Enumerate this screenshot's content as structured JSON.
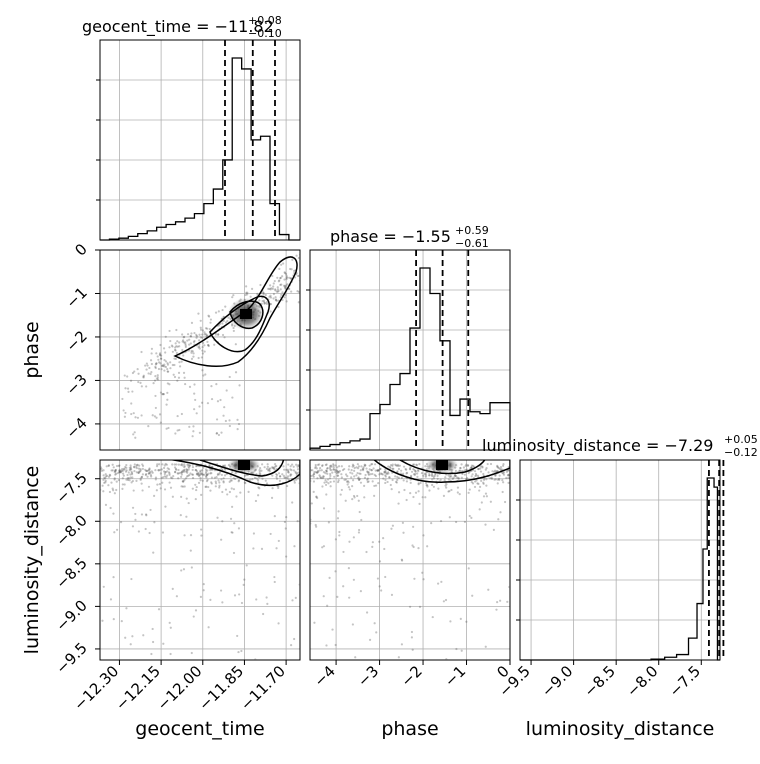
{
  "chart_data": {
    "type": "corner",
    "parameters": [
      {
        "name": "geocent_time",
        "range": [
          -12.37,
          -11.65
        ],
        "ticks": [
          -12.3,
          -12.15,
          -12.0,
          -11.85,
          -11.7
        ]
      },
      {
        "name": "phase",
        "range": [
          -4.6,
          0
        ],
        "ticks": [
          -4,
          -3,
          -2,
          -1,
          0
        ]
      },
      {
        "name": "luminosity_distance",
        "range": [
          -9.63,
          -7.28
        ],
        "ticks": [
          -9.5,
          -9.0,
          -8.5,
          -8.0,
          -7.5
        ]
      }
    ],
    "tick_labels": {
      "geocent_time": [
        "−12.30",
        "−12.15",
        "−12.00",
        "−11.85",
        "−11.70"
      ],
      "phase": [
        "−4",
        "−3",
        "−2",
        "−1",
        "0"
      ],
      "luminosity_distance": [
        "−9.5",
        "−9.0",
        "−8.5",
        "−8.0",
        "−7.5"
      ]
    },
    "titles": [
      {
        "label": "geocent_time = −11.82",
        "sup": "+0.08",
        "sub": "−0.10"
      },
      {
        "label": "phase = −1.55",
        "sup": "+0.59",
        "sub": "−0.61"
      },
      {
        "label": "luminosity_distance = −7.29",
        "sup": "+0.05",
        "sub": "−0.12"
      }
    ],
    "axis_labels": {
      "x": [
        "geocent_time",
        "phase",
        "luminosity_distance"
      ],
      "y": [
        "phase",
        "luminosity_distance"
      ]
    },
    "quantiles": {
      "geocent_time": [
        -11.92,
        -11.82,
        -11.74
      ],
      "phase": [
        -2.16,
        -1.55,
        -0.96
      ],
      "luminosity_distance": [
        -7.41,
        -7.29,
        -7.24
      ]
    },
    "histograms": {
      "geocent_time": {
        "edges": [
          -12.37,
          -12.336,
          -12.302,
          -12.268,
          -12.234,
          -12.2,
          -12.166,
          -12.132,
          -12.098,
          -12.064,
          -12.03,
          -11.996,
          -11.962,
          -11.928,
          -11.894,
          -11.86,
          -11.826,
          -11.792,
          -11.758,
          -11.724,
          -11.69,
          -11.65
        ],
        "counts": [
          0.0,
          0.005,
          0.01,
          0.02,
          0.035,
          0.05,
          0.07,
          0.085,
          0.1,
          0.12,
          0.145,
          0.2,
          0.28,
          0.44,
          1.0,
          0.94,
          0.55,
          0.57,
          0.2,
          0.03,
          0.0
        ]
      },
      "phase": {
        "edges": [
          -4.6,
          -4.37,
          -4.14,
          -3.91,
          -3.68,
          -3.45,
          -3.22,
          -2.99,
          -2.76,
          -2.53,
          -2.3,
          -2.07,
          -1.84,
          -1.61,
          -1.38,
          -1.15,
          -0.92,
          -0.69,
          -0.46,
          -0.23,
          0.0
        ],
        "counts": [
          0.01,
          0.02,
          0.03,
          0.04,
          0.05,
          0.06,
          0.2,
          0.25,
          0.36,
          0.42,
          0.67,
          1.0,
          0.86,
          0.6,
          0.19,
          0.28,
          0.21,
          0.2,
          0.26,
          0.26
        ]
      },
      "luminosity_distance": {
        "edges": [
          -9.63,
          -8.09,
          -7.93,
          -7.79,
          -7.65,
          -7.55,
          -7.48,
          -7.43,
          -7.39,
          -7.35,
          -7.31,
          -7.28
        ],
        "counts": [
          0.0,
          0.005,
          0.015,
          0.03,
          0.12,
          0.31,
          0.61,
          1.0,
          1.0,
          0.95,
          0.0
        ]
      }
    },
    "credible_levels": [
      0.5,
      0.8,
      0.95
    ],
    "grid": true
  }
}
